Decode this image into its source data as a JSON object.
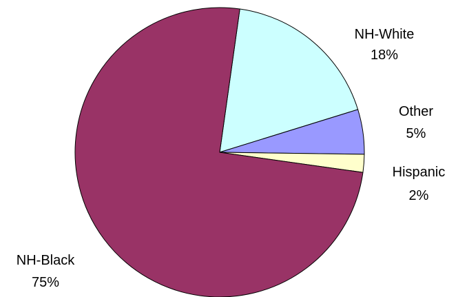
{
  "chart_data": {
    "type": "pie",
    "title": "",
    "slices": [
      {
        "label": "NH-White",
        "percent_label": "18%",
        "value": 18,
        "color": "#CCFFFF"
      },
      {
        "label": "Other",
        "percent_label": "5%",
        "value": 5,
        "color": "#9999FF"
      },
      {
        "label": "Hispanic",
        "percent_label": "2%",
        "value": 2,
        "color": "#FFFFCC"
      },
      {
        "label": "NH-Black",
        "percent_label": "75%",
        "value": 75,
        "color": "#993366"
      }
    ]
  }
}
